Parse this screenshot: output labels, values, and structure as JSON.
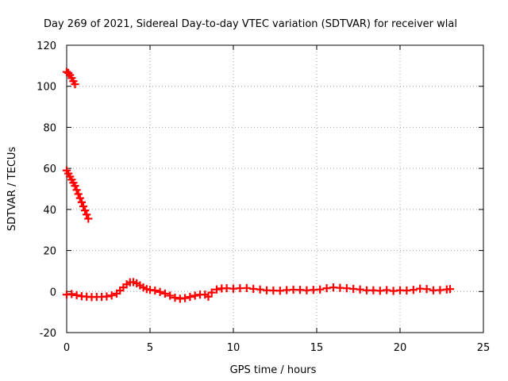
{
  "chart_data": {
    "type": "scatter",
    "title": "Day 269 of 2021, Sidereal Day-to-day VTEC variation (SDTVAR) for receiver wlal",
    "xlabel": "GPS time / hours",
    "ylabel": "SDTVAR / TECUs",
    "xlim": [
      0,
      25
    ],
    "ylim": [
      -20,
      120
    ],
    "x_ticks": [
      0,
      5,
      10,
      15,
      20,
      25
    ],
    "y_ticks": [
      -20,
      0,
      20,
      40,
      60,
      80,
      100,
      120
    ],
    "x_tick_labels": [
      "0",
      "5",
      "10",
      "15",
      "20",
      "25"
    ],
    "y_tick_labels": [
      "-20",
      "0",
      "20",
      "40",
      "60",
      "80",
      "100",
      "120"
    ],
    "grid": true,
    "legend": "none",
    "series": [
      {
        "color": "#ff0000",
        "marker": "plus",
        "points": [
          [
            0.0,
            107
          ],
          [
            0.1,
            106.5
          ],
          [
            0.2,
            105.5
          ],
          [
            0.3,
            104
          ],
          [
            0.4,
            102.5
          ],
          [
            0.5,
            101
          ],
          [
            0.0,
            59
          ],
          [
            0.1,
            57.5
          ],
          [
            0.2,
            56
          ],
          [
            0.3,
            54.5
          ],
          [
            0.4,
            53
          ],
          [
            0.5,
            51.5
          ],
          [
            0.6,
            49.5
          ],
          [
            0.7,
            47.5
          ],
          [
            0.8,
            45.5
          ],
          [
            0.9,
            43.5
          ],
          [
            1.0,
            41.5
          ],
          [
            1.1,
            39.5
          ],
          [
            1.2,
            37.5
          ],
          [
            1.3,
            35.5
          ],
          [
            0.0,
            -1.5
          ],
          [
            0.3,
            -1.2
          ],
          [
            0.6,
            -1.8
          ],
          [
            0.9,
            -2.3
          ],
          [
            1.2,
            -2.5
          ],
          [
            1.5,
            -2.7
          ],
          [
            1.8,
            -2.6
          ],
          [
            2.1,
            -2.6
          ],
          [
            2.4,
            -2.4
          ],
          [
            2.7,
            -1.9
          ],
          [
            3.0,
            -1.0
          ],
          [
            3.2,
            0.5
          ],
          [
            3.4,
            2.0
          ],
          [
            3.6,
            3.5
          ],
          [
            3.8,
            4.5
          ],
          [
            4.0,
            4.6
          ],
          [
            4.2,
            4.0
          ],
          [
            4.4,
            3.0
          ],
          [
            4.6,
            2.0
          ],
          [
            4.8,
            1.2
          ],
          [
            5.0,
            0.8
          ],
          [
            5.3,
            0.5
          ],
          [
            5.6,
            -0.2
          ],
          [
            5.9,
            -1.0
          ],
          [
            6.2,
            -2.0
          ],
          [
            6.5,
            -3.0
          ],
          [
            6.8,
            -3.5
          ],
          [
            7.1,
            -3.2
          ],
          [
            7.4,
            -2.6
          ],
          [
            7.7,
            -2.0
          ],
          [
            8.0,
            -1.5
          ],
          [
            8.3,
            -1.5
          ],
          [
            8.5,
            -2.5
          ],
          [
            8.7,
            -0.5
          ],
          [
            9.0,
            1.0
          ],
          [
            9.3,
            1.5
          ],
          [
            9.6,
            1.6
          ],
          [
            10.0,
            1.4
          ],
          [
            10.4,
            1.6
          ],
          [
            10.8,
            1.7
          ],
          [
            11.2,
            1.3
          ],
          [
            11.6,
            1.0
          ],
          [
            12.0,
            0.6
          ],
          [
            12.4,
            0.5
          ],
          [
            12.8,
            0.4
          ],
          [
            13.2,
            0.7
          ],
          [
            13.6,
            0.9
          ],
          [
            14.0,
            0.8
          ],
          [
            14.4,
            0.6
          ],
          [
            14.8,
            0.8
          ],
          [
            15.2,
            1.0
          ],
          [
            15.6,
            1.6
          ],
          [
            16.0,
            2.0
          ],
          [
            16.4,
            1.8
          ],
          [
            16.8,
            1.6
          ],
          [
            17.2,
            1.3
          ],
          [
            17.6,
            1.0
          ],
          [
            18.0,
            0.6
          ],
          [
            18.4,
            0.6
          ],
          [
            18.8,
            0.4
          ],
          [
            19.2,
            0.7
          ],
          [
            19.6,
            0.3
          ],
          [
            20.0,
            0.6
          ],
          [
            20.4,
            0.5
          ],
          [
            20.8,
            0.8
          ],
          [
            21.2,
            1.4
          ],
          [
            21.6,
            1.2
          ],
          [
            22.0,
            0.6
          ],
          [
            22.4,
            0.7
          ],
          [
            22.8,
            1.0
          ],
          [
            23.0,
            1.2
          ]
        ]
      }
    ]
  }
}
